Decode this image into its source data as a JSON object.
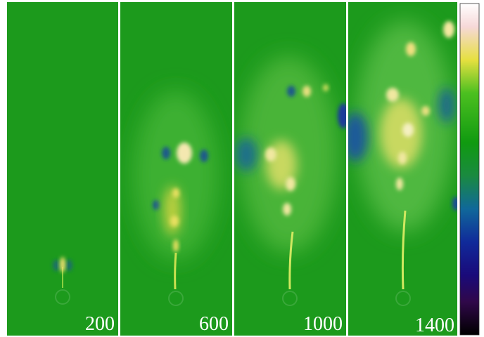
{
  "panels": [
    {
      "label": 200
    },
    {
      "label": 600
    },
    {
      "label": 1000
    },
    {
      "label": 1400
    }
  ]
}
